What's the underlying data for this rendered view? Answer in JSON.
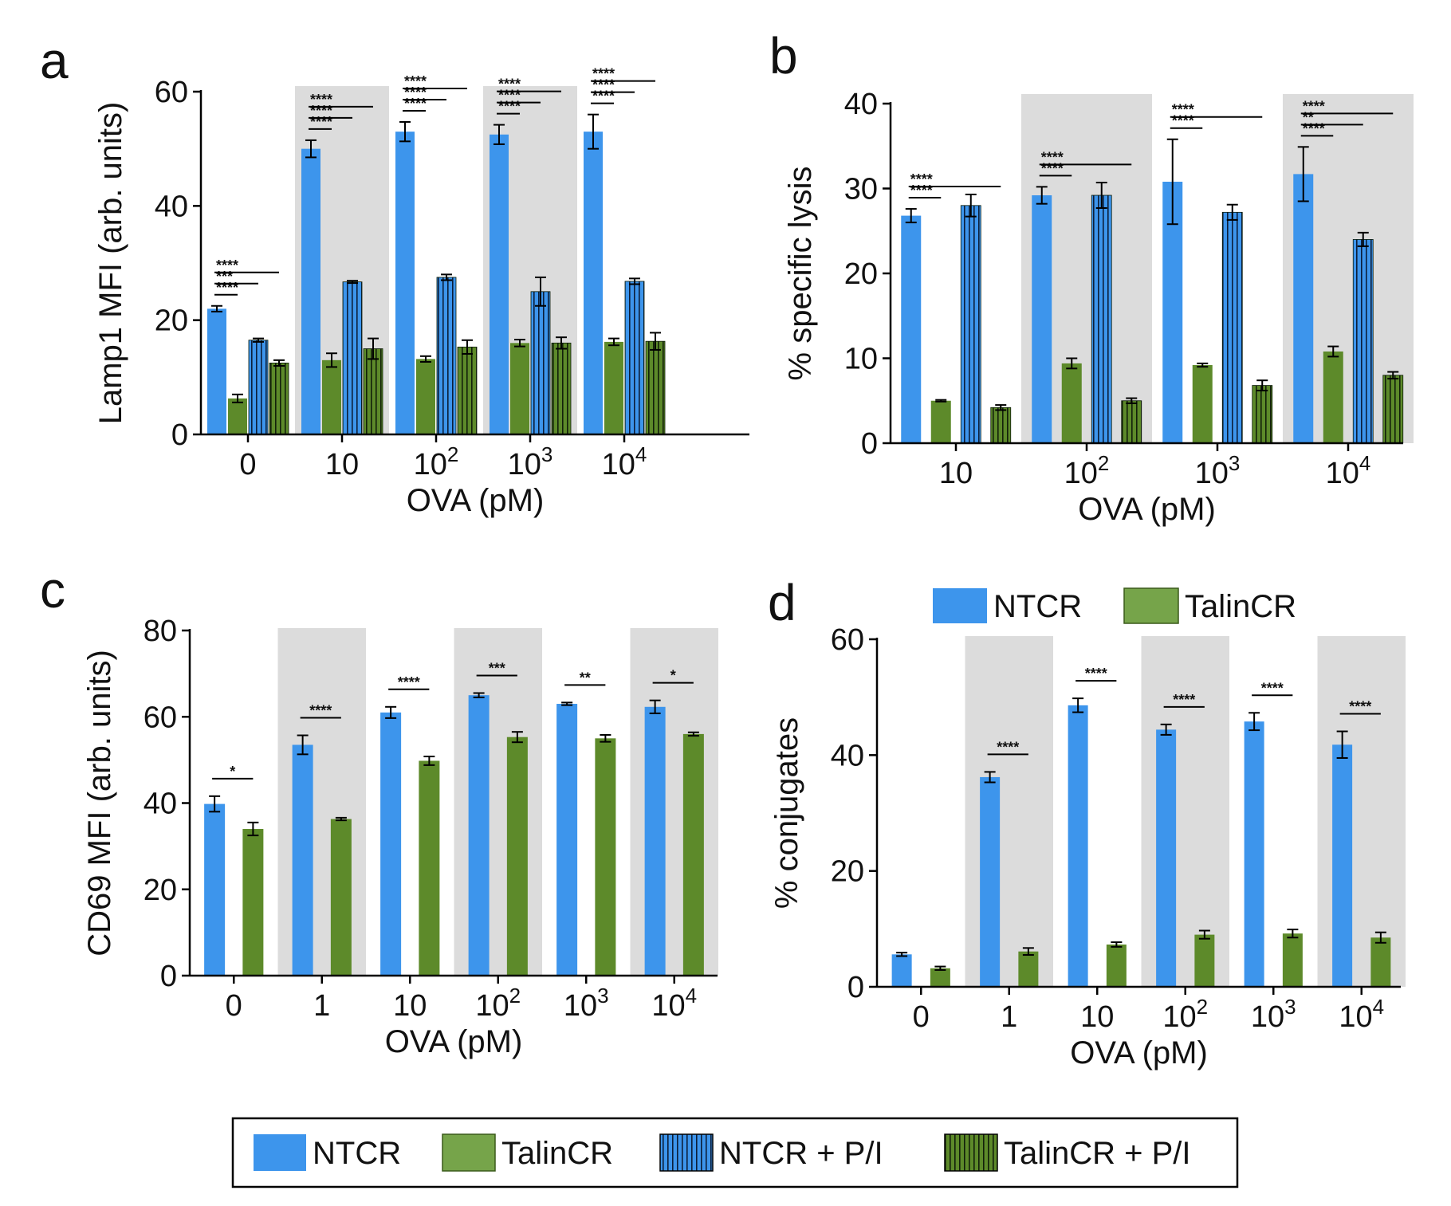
{
  "colors": {
    "NTCR": "#3d95ec",
    "TalinCR": "#5d8a2a",
    "TalinCR_legend": "#76a44a",
    "shade": "#dcdcdc",
    "text": "#111111"
  },
  "legend_bottom": {
    "items": [
      {
        "label": "NTCR",
        "series": "NTCR",
        "pattern": false
      },
      {
        "label": "TalinCR",
        "series": "TalinCR",
        "pattern": false
      },
      {
        "label": "NTCR + P/I",
        "series": "NTCR",
        "pattern": true
      },
      {
        "label": "TalinCR + P/I",
        "series": "TalinCR",
        "pattern": true
      }
    ]
  },
  "legend_d": {
    "items": [
      {
        "label": "NTCR",
        "series": "NTCR"
      },
      {
        "label": "TalinCR",
        "series": "TalinCR"
      }
    ]
  },
  "chart_data": [
    {
      "panel": "a",
      "type": "bar",
      "ylabel": "Lamp1 MFI (arb. units)",
      "xlabel": "OVA (pM)",
      "ylim": [
        0,
        60
      ],
      "yticks": [
        "0",
        "20",
        "40",
        "60"
      ],
      "categories": [
        {
          "base": "0",
          "sup": ""
        },
        {
          "base": "10",
          "sup": ""
        },
        {
          "base": "10",
          "sup": "2"
        },
        {
          "base": "10",
          "sup": "3"
        },
        {
          "base": "10",
          "sup": "4"
        }
      ],
      "shaded": [
        false,
        true,
        false,
        true,
        false
      ],
      "series": [
        {
          "name": "NTCR",
          "pattern": false,
          "values": [
            22,
            50,
            53,
            52.5,
            53
          ],
          "errors": [
            0.5,
            1.5,
            1.7,
            1.7,
            3
          ]
        },
        {
          "name": "TalinCR",
          "pattern": false,
          "values": [
            6.3,
            13,
            13.2,
            16,
            16.2
          ],
          "errors": [
            0.7,
            1.2,
            0.5,
            0.6,
            0.6
          ]
        },
        {
          "name": "NTCR + P/I",
          "pattern": true,
          "values": [
            16.5,
            26.7,
            27.5,
            25,
            26.8
          ],
          "errors": [
            0.3,
            0.2,
            0.5,
            2.5,
            0.5
          ]
        },
        {
          "name": "TalinCR + P/I",
          "pattern": true,
          "values": [
            12.5,
            15,
            15.3,
            16,
            16.3
          ],
          "errors": [
            0.5,
            1.8,
            1.2,
            1.0,
            1.5
          ]
        }
      ],
      "significance": [
        {
          "group": 0,
          "from": 0,
          "to": 1,
          "label": "****",
          "level": 0
        },
        {
          "group": 0,
          "from": 0,
          "to": 2,
          "label": "***",
          "level": 1
        },
        {
          "group": 0,
          "from": 0,
          "to": 3,
          "label": "****",
          "level": 2
        },
        {
          "group": 1,
          "from": 0,
          "to": 1,
          "label": "****",
          "level": 0
        },
        {
          "group": 1,
          "from": 0,
          "to": 2,
          "label": "****",
          "level": 1
        },
        {
          "group": 1,
          "from": 0,
          "to": 3,
          "label": "****",
          "level": 2
        },
        {
          "group": 2,
          "from": 0,
          "to": 1,
          "label": "****",
          "level": 0
        },
        {
          "group": 2,
          "from": 0,
          "to": 2,
          "label": "****",
          "level": 1
        },
        {
          "group": 2,
          "from": 0,
          "to": 3,
          "label": "****",
          "level": 2
        },
        {
          "group": 3,
          "from": 0,
          "to": 1,
          "label": "****",
          "level": 0
        },
        {
          "group": 3,
          "from": 0,
          "to": 2,
          "label": "****",
          "level": 1
        },
        {
          "group": 3,
          "from": 0,
          "to": 3,
          "label": "****",
          "level": 2
        },
        {
          "group": 4,
          "from": 0,
          "to": 1,
          "label": "****",
          "level": 0
        },
        {
          "group": 4,
          "from": 0,
          "to": 2,
          "label": "****",
          "level": 1
        },
        {
          "group": 4,
          "from": 0,
          "to": 3,
          "label": "****",
          "level": 2
        }
      ]
    },
    {
      "panel": "b",
      "type": "bar",
      "ylabel": "% specific lysis",
      "xlabel": "OVA (pM)",
      "ylim": [
        0,
        40
      ],
      "yticks": [
        "0",
        "10",
        "20",
        "30",
        "40"
      ],
      "categories": [
        {
          "base": "10",
          "sup": ""
        },
        {
          "base": "10",
          "sup": "2"
        },
        {
          "base": "10",
          "sup": "3"
        },
        {
          "base": "10",
          "sup": "4"
        }
      ],
      "shaded": [
        false,
        true,
        false,
        true
      ],
      "series": [
        {
          "name": "NTCR",
          "pattern": false,
          "values": [
            26.8,
            29.2,
            30.8,
            31.7
          ],
          "errors": [
            0.8,
            1.0,
            5.0,
            3.2
          ]
        },
        {
          "name": "TalinCR",
          "pattern": false,
          "values": [
            5,
            9.4,
            9.2,
            10.8
          ],
          "errors": [
            0.1,
            0.6,
            0.2,
            0.6
          ]
        },
        {
          "name": "NTCR + P/I",
          "pattern": true,
          "values": [
            28,
            29.2,
            27.2,
            24
          ],
          "errors": [
            1.3,
            1.5,
            0.9,
            0.8
          ]
        },
        {
          "name": "TalinCR + P/I",
          "pattern": true,
          "values": [
            4.2,
            5,
            6.8,
            8
          ],
          "errors": [
            0.3,
            0.3,
            0.6,
            0.4
          ]
        }
      ],
      "significance": [
        {
          "group": 0,
          "from": 0,
          "to": 1,
          "label": "****",
          "level": 0
        },
        {
          "group": 0,
          "from": 0,
          "to": 3,
          "label": "****",
          "level": 1
        },
        {
          "group": 1,
          "from": 0,
          "to": 1,
          "label": "****",
          "level": 0
        },
        {
          "group": 1,
          "from": 0,
          "to": 3,
          "label": "****",
          "level": 1
        },
        {
          "group": 2,
          "from": 0,
          "to": 1,
          "label": "****",
          "level": 0
        },
        {
          "group": 2,
          "from": 0,
          "to": 3,
          "label": "****",
          "level": 1
        },
        {
          "group": 3,
          "from": 0,
          "to": 1,
          "label": "****",
          "level": 0
        },
        {
          "group": 3,
          "from": 0,
          "to": 2,
          "label": "**",
          "level": 1
        },
        {
          "group": 3,
          "from": 0,
          "to": 3,
          "label": "****",
          "level": 2
        }
      ]
    },
    {
      "panel": "c",
      "type": "bar",
      "ylabel": "CD69 MFI (arb. units)",
      "xlabel": "OVA (pM)",
      "ylim": [
        0,
        80
      ],
      "yticks": [
        "0",
        "20",
        "40",
        "60",
        "80"
      ],
      "categories": [
        {
          "base": "0",
          "sup": ""
        },
        {
          "base": "1",
          "sup": ""
        },
        {
          "base": "10",
          "sup": ""
        },
        {
          "base": "10",
          "sup": "2"
        },
        {
          "base": "10",
          "sup": "3"
        },
        {
          "base": "10",
          "sup": "4"
        }
      ],
      "shaded": [
        false,
        true,
        false,
        true,
        false,
        true
      ],
      "series": [
        {
          "name": "NTCR",
          "pattern": false,
          "values": [
            39.8,
            53.5,
            61,
            65,
            63,
            62.3
          ],
          "errors": [
            1.8,
            2.2,
            1.3,
            0.5,
            0.3,
            1.5
          ]
        },
        {
          "name": "TalinCR",
          "pattern": false,
          "values": [
            34,
            36.3,
            49.8,
            55.3,
            55,
            56
          ],
          "errors": [
            1.5,
            0.3,
            1.0,
            1.2,
            0.8,
            0.4
          ]
        }
      ],
      "significance": [
        {
          "group": 0,
          "from": 0,
          "to": 1,
          "label": "*",
          "level": 0
        },
        {
          "group": 1,
          "from": 0,
          "to": 1,
          "label": "****",
          "level": 0
        },
        {
          "group": 2,
          "from": 0,
          "to": 1,
          "label": "****",
          "level": 0
        },
        {
          "group": 3,
          "from": 0,
          "to": 1,
          "label": "***",
          "level": 0
        },
        {
          "group": 4,
          "from": 0,
          "to": 1,
          "label": "**",
          "level": 0
        },
        {
          "group": 5,
          "from": 0,
          "to": 1,
          "label": "*",
          "level": 0
        }
      ]
    },
    {
      "panel": "d",
      "type": "bar",
      "ylabel": "% conjugates",
      "xlabel": "OVA (pM)",
      "ylim": [
        0,
        60
      ],
      "yticks": [
        "0",
        "20",
        "40",
        "60"
      ],
      "categories": [
        {
          "base": "0",
          "sup": ""
        },
        {
          "base": "1",
          "sup": ""
        },
        {
          "base": "10",
          "sup": ""
        },
        {
          "base": "10",
          "sup": "2"
        },
        {
          "base": "10",
          "sup": "3"
        },
        {
          "base": "10",
          "sup": "4"
        }
      ],
      "shaded": [
        false,
        true,
        false,
        true,
        false,
        true
      ],
      "series": [
        {
          "name": "NTCR",
          "pattern": false,
          "values": [
            5.6,
            36.2,
            48.6,
            44.4,
            45.8,
            41.8
          ],
          "errors": [
            0.3,
            0.9,
            1.2,
            0.9,
            1.5,
            2.3
          ]
        },
        {
          "name": "TalinCR",
          "pattern": false,
          "values": [
            3.2,
            6.1,
            7.3,
            9,
            9.2,
            8.5
          ],
          "errors": [
            0.3,
            0.6,
            0.4,
            0.7,
            0.7,
            0.9
          ]
        }
      ],
      "significance": [
        {
          "group": 1,
          "from": 0,
          "to": 1,
          "label": "****",
          "level": 0
        },
        {
          "group": 2,
          "from": 0,
          "to": 1,
          "label": "****",
          "level": 0
        },
        {
          "group": 3,
          "from": 0,
          "to": 1,
          "label": "****",
          "level": 0
        },
        {
          "group": 4,
          "from": 0,
          "to": 1,
          "label": "****",
          "level": 0
        },
        {
          "group": 5,
          "from": 0,
          "to": 1,
          "label": "****",
          "level": 0
        }
      ]
    }
  ]
}
